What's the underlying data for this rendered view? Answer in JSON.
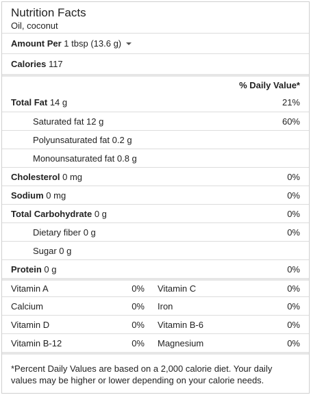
{
  "header": {
    "title": "Nutrition Facts",
    "subtitle": "Oil, coconut"
  },
  "amount": {
    "label": "Amount Per",
    "serving": "1 tbsp (13.6 g)"
  },
  "calories": {
    "label": "Calories",
    "value": "117"
  },
  "dv_header": "% Daily Value*",
  "nutrients": [
    {
      "label": "Total Fat",
      "amount": "14 g",
      "pct": "21%"
    },
    {
      "label": "Saturated fat 12 g",
      "pct": "60%"
    },
    {
      "label": "Polyunsaturated fat 0.2 g",
      "pct": ""
    },
    {
      "label": "Monounsaturated fat 0.8 g",
      "pct": ""
    },
    {
      "label": "Cholesterol",
      "amount": "0 mg",
      "pct": "0%"
    },
    {
      "label": "Sodium",
      "amount": "0 mg",
      "pct": "0%"
    },
    {
      "label": "Total Carbohydrate",
      "amount": "0 g",
      "pct": "0%"
    },
    {
      "label": "Dietary fiber 0 g",
      "pct": "0%"
    },
    {
      "label": "Sugar 0 g",
      "pct": ""
    },
    {
      "label": "Protein",
      "amount": "0 g",
      "pct": "0%"
    }
  ],
  "vitamins": [
    {
      "left_name": "Vitamin A",
      "left_pct": "0%",
      "right_name": "Vitamin C",
      "right_pct": "0%"
    },
    {
      "left_name": "Calcium",
      "left_pct": "0%",
      "right_name": "Iron",
      "right_pct": "0%"
    },
    {
      "left_name": "Vitamin D",
      "left_pct": "0%",
      "right_name": "Vitamin B-6",
      "right_pct": "0%"
    },
    {
      "left_name": "Vitamin B-12",
      "left_pct": "0%",
      "right_name": "Magnesium",
      "right_pct": "0%"
    }
  ],
  "footnote": "*Percent Daily Values are based on a 2,000 calorie diet. Your daily values may be higher or lower depending on your calorie needs."
}
